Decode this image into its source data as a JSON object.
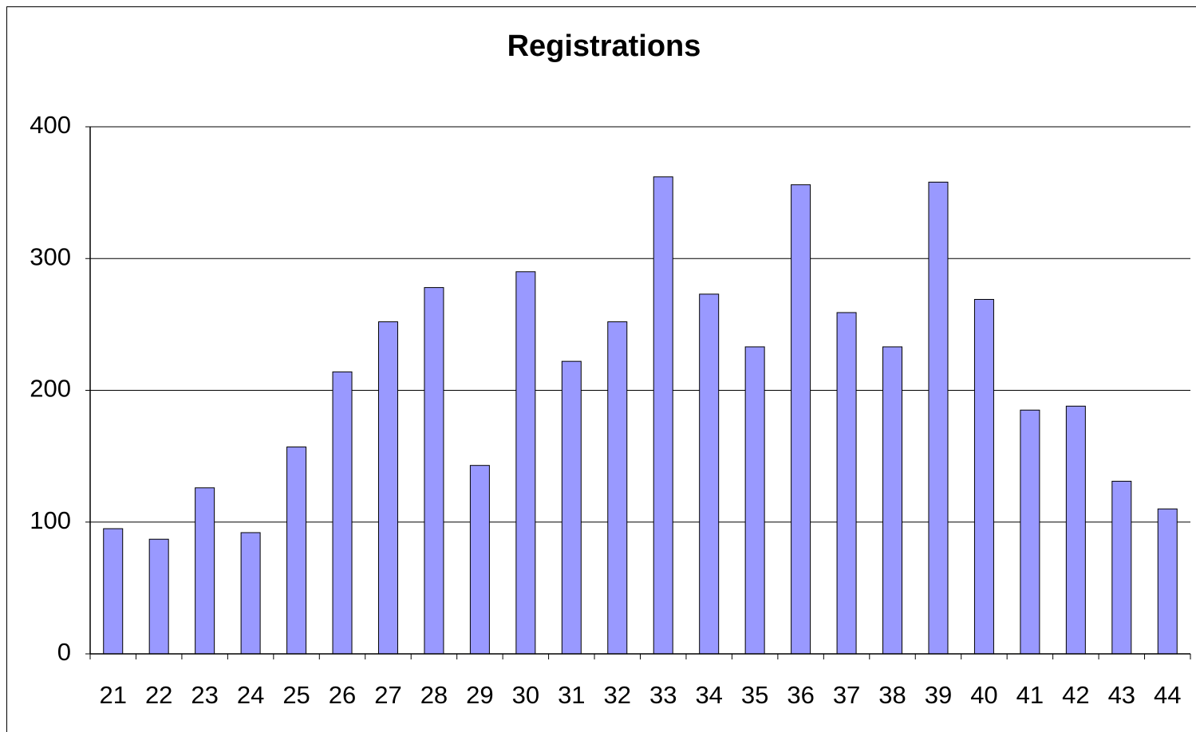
{
  "chart_data": {
    "type": "bar",
    "title": "Registrations",
    "categories": [
      "21",
      "22",
      "23",
      "24",
      "25",
      "26",
      "27",
      "28",
      "29",
      "30",
      "31",
      "32",
      "33",
      "34",
      "35",
      "36",
      "37",
      "38",
      "39",
      "40",
      "41",
      "42",
      "43",
      "44"
    ],
    "values": [
      95,
      87,
      126,
      92,
      157,
      214,
      252,
      278,
      143,
      290,
      222,
      252,
      362,
      273,
      233,
      356,
      259,
      233,
      358,
      269,
      185,
      188,
      131,
      110
    ],
    "color": "#9999ff",
    "ylim": [
      0,
      400
    ],
    "yticks": [
      0,
      100,
      200,
      300,
      400
    ],
    "grid": true
  }
}
